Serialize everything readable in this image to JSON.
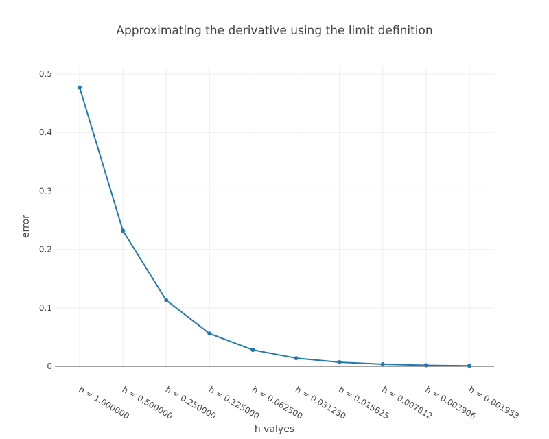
{
  "chart_data": {
    "type": "line",
    "title": "Approximating the derivative using the limit definition",
    "xlabel": "h valyes",
    "ylabel": "error",
    "categories": [
      "h = 1.000000",
      "h = 0.500000",
      "h = 0.250000",
      "h = 0.125000",
      "h = 0.062500",
      "h = 0.031250",
      "h = 0.015625",
      "h = 0.007812",
      "h = 0.003906",
      "h = 0.001953"
    ],
    "series": [
      {
        "values": [
          0.477,
          0.232,
          0.113,
          0.056,
          0.028,
          0.014,
          0.007,
          0.0035,
          0.0017,
          0.0009
        ],
        "color": "#1f77b4"
      }
    ],
    "ylim": [
      0,
      0.5
    ],
    "yticks": [
      0,
      0.1,
      0.2,
      0.3,
      0.4,
      0.5
    ],
    "ytick_labels": [
      "0",
      "0.1",
      "0.2",
      "0.3",
      "0.4",
      "0.5"
    ],
    "grid": true,
    "legend": "none",
    "colors": {
      "line": "#1f77b4",
      "grid": "#eeeeee",
      "zeroline": "#444444",
      "text": "#444444"
    }
  }
}
